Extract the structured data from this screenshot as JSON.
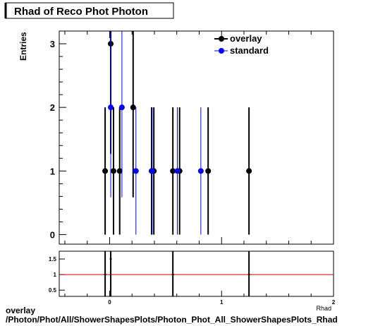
{
  "chart_data": {
    "type": "scatter",
    "title": "Rhad of Reco Phot Photon",
    "ylabel": "Entries",
    "xlabel": "Rhad",
    "xlim": [
      -0.45,
      2.0
    ],
    "ylim": [
      -0.15,
      3.2
    ],
    "yticks": [
      0,
      1,
      2,
      3
    ],
    "legend_position": "top-right",
    "series": [
      {
        "name": "overlay",
        "color": "#000000",
        "points": [
          {
            "x": -0.04,
            "y": 1
          },
          {
            "x": 0.01,
            "y": 3
          },
          {
            "x": 0.035,
            "y": 1
          },
          {
            "x": 0.09,
            "y": 1
          },
          {
            "x": 0.21,
            "y": 2
          },
          {
            "x": 0.375,
            "y": 1
          },
          {
            "x": 0.395,
            "y": 1
          },
          {
            "x": 0.565,
            "y": 1
          },
          {
            "x": 0.625,
            "y": 1
          },
          {
            "x": 0.88,
            "y": 1
          },
          {
            "x": 1.245,
            "y": 1
          }
        ]
      },
      {
        "name": "standard",
        "color": "#0000ff",
        "points": [
          {
            "x": 0.01,
            "y": 2
          },
          {
            "x": 0.11,
            "y": 2
          },
          {
            "x": 0.235,
            "y": 1
          },
          {
            "x": 0.38,
            "y": 1
          },
          {
            "x": 0.605,
            "y": 1
          },
          {
            "x": 0.815,
            "y": 1
          }
        ]
      }
    ],
    "ratio": {
      "ylim": [
        0.3,
        1.75
      ],
      "yticks": [
        0.5,
        1,
        1.5
      ],
      "xticks": [
        0,
        1,
        2
      ],
      "reference_line": 1,
      "reference_color": "#cc0000",
      "points": [
        {
          "x": -0.04,
          "y": 1,
          "err": 1.6
        },
        {
          "x": 0.01,
          "y": 1.5,
          "err": 1.6
        },
        {
          "x": 0.565,
          "y": 1,
          "err": 1.6
        },
        {
          "x": 1.245,
          "y": 1,
          "err": 1.6
        }
      ]
    }
  },
  "footer": {
    "line1": "overlay",
    "line2": "/Photon/Phot/All/ShowerShapesPlots/Photon_Phot_All_ShowerShapesPlots_Rhad"
  }
}
